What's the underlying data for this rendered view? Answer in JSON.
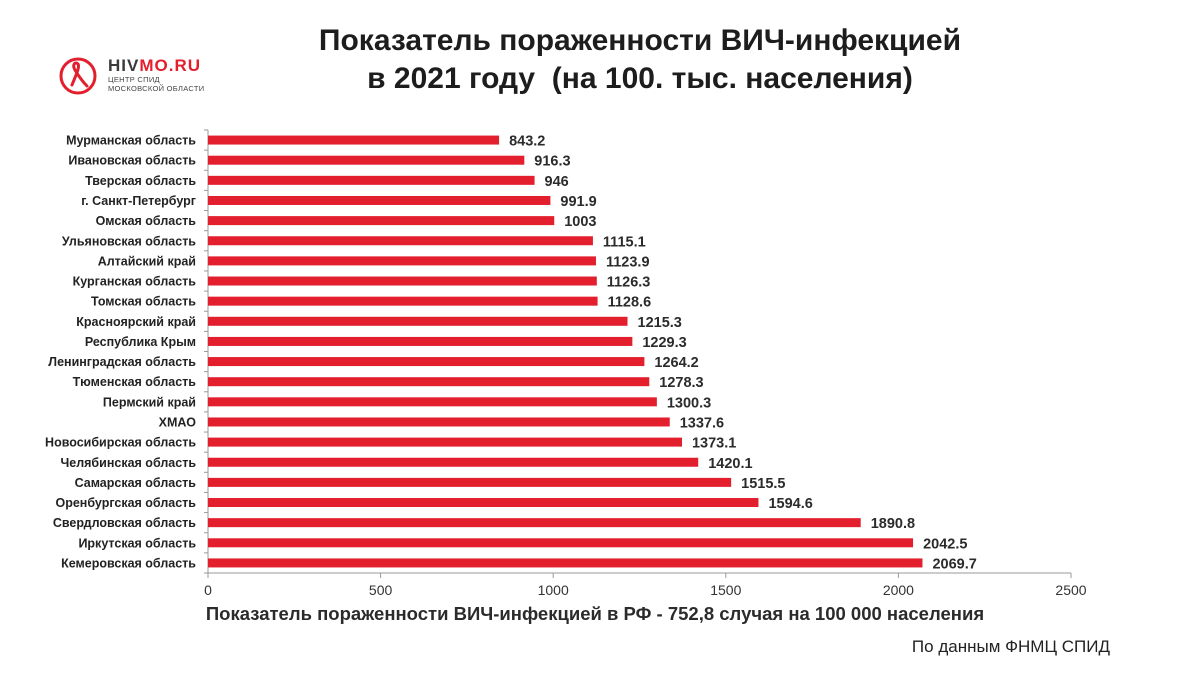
{
  "logo": {
    "brand_part1": "HIV",
    "brand_part2": "MO.RU",
    "subtitle_line1": "ЦЕНТР СПИД",
    "subtitle_line2": "МОСКОВСКОЙ ОБЛАСТИ",
    "accent_color": "#e31e2d"
  },
  "title": {
    "line1": "Показатель пораженности ВИЧ-инфекцией",
    "line2": "в 2021 году  (на 100. тыс. населения)"
  },
  "chart_data": {
    "type": "bar",
    "orientation": "horizontal",
    "categories": [
      "Мурманская область",
      "Ивановская область",
      "Тверская область",
      "г. Санкт-Петербург",
      "Омская область",
      "Ульяновская область",
      "Алтайский край",
      "Курганская область",
      "Томская область",
      "Красноярский край",
      "Республика Крым",
      "Ленинградская область",
      "Тюменская область",
      "Пермский край",
      "ХМАО",
      "Новосибирская область",
      "Челябинская область",
      "Самарская область",
      "Оренбургская область",
      "Свердловская область",
      "Иркутская область",
      "Кемеровская область"
    ],
    "values": [
      843.2,
      916.3,
      946,
      991.9,
      1003,
      1115.1,
      1123.9,
      1126.3,
      1128.6,
      1215.3,
      1229.3,
      1264.2,
      1278.3,
      1300.3,
      1337.6,
      1373.1,
      1420.1,
      1515.5,
      1594.6,
      1890.8,
      2042.5,
      2069.7
    ],
    "value_labels": [
      "843.2",
      "916.3",
      "946",
      "991.9",
      "1003",
      "1115.1",
      "1123.9",
      "1126.3",
      "1128.6",
      "1215.3",
      "1229.3",
      "1264.2",
      "1278.3",
      "1300.3",
      "1337.6",
      "1373.1",
      "1420.1",
      "1515.5",
      "1594.6",
      "1890.8",
      "2042.5",
      "2069.7"
    ],
    "xlim": [
      0,
      2500
    ],
    "xticks": [
      0,
      500,
      1000,
      1500,
      2000,
      2500
    ],
    "grid": false,
    "bar_color": "#e31e2d"
  },
  "footnote": "Показатель пораженности ВИЧ-инфекцией в РФ - 752,8 случая на 100 000 населения",
  "source": "По данным ФНМЦ СПИД"
}
